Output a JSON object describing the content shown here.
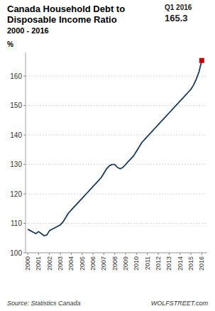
{
  "chart_data": {
    "type": "line",
    "title": [
      "Canada Household Debt to",
      "Disposable Income Ratio"
    ],
    "subtitle": "2000 - 2016",
    "y_label": "%",
    "annotations": [
      "Q1 2016",
      "165.3",
      "Source: Statistics Canada",
      "WOLFSTREET.com"
    ],
    "x": [
      2000.0,
      2000.25,
      2000.5,
      2000.75,
      2001.0,
      2001.25,
      2001.5,
      2001.75,
      2002.0,
      2002.25,
      2002.5,
      2002.75,
      2003.0,
      2003.25,
      2003.5,
      2003.75,
      2004.0,
      2004.25,
      2004.5,
      2004.75,
      2005.0,
      2005.25,
      2005.5,
      2005.75,
      2006.0,
      2006.25,
      2006.5,
      2006.75,
      2007.0,
      2007.25,
      2007.5,
      2007.75,
      2008.0,
      2008.25,
      2008.5,
      2008.75,
      2009.0,
      2009.25,
      2009.5,
      2009.75,
      2010.0,
      2010.25,
      2010.5,
      2010.75,
      2011.0,
      2011.25,
      2011.5,
      2011.75,
      2012.0,
      2012.25,
      2012.5,
      2012.75,
      2013.0,
      2013.25,
      2013.5,
      2013.75,
      2014.0,
      2014.25,
      2014.5,
      2014.75,
      2015.0,
      2015.25,
      2015.5,
      2015.75,
      2016.0
    ],
    "series": [
      {
        "color": "#1a3a5c",
        "values": [
          108.0,
          107.5,
          107.0,
          106.5,
          107.2,
          106.5,
          105.8,
          106.0,
          107.5,
          108.0,
          108.5,
          109.0,
          109.5,
          110.5,
          112.0,
          113.5,
          114.5,
          115.5,
          116.5,
          117.5,
          118.5,
          119.5,
          120.5,
          121.5,
          122.5,
          123.5,
          124.5,
          125.5,
          127.0,
          128.5,
          129.5,
          130.0,
          130.0,
          129.0,
          128.5,
          129.0,
          130.0,
          131.0,
          132.0,
          133.0,
          134.5,
          136.0,
          137.5,
          138.5,
          139.5,
          140.5,
          141.5,
          142.5,
          143.5,
          144.5,
          145.5,
          146.5,
          147.5,
          148.5,
          149.5,
          150.5,
          151.5,
          152.5,
          153.5,
          154.5,
          155.5,
          157.0,
          159.0,
          161.5,
          165.3
        ]
      },
      {
        "type": "scatter",
        "marker": "square",
        "color": "#cc0000",
        "values": [
          null,
          null,
          null,
          null,
          null,
          null,
          null,
          null,
          null,
          null,
          null,
          null,
          null,
          null,
          null,
          null,
          null,
          null,
          null,
          null,
          null,
          null,
          null,
          null,
          null,
          null,
          null,
          null,
          null,
          null,
          null,
          null,
          null,
          null,
          null,
          null,
          null,
          null,
          null,
          null,
          null,
          null,
          null,
          null,
          null,
          null,
          null,
          null,
          null,
          null,
          null,
          null,
          null,
          null,
          null,
          null,
          null,
          null,
          null,
          null,
          null,
          null,
          null,
          null,
          165.3
        ]
      }
    ],
    "xlim": [
      1999.8,
      2016.5
    ],
    "xticks": [
      2000,
      2001,
      2002,
      2003,
      2004,
      2005,
      2006,
      2007,
      2008,
      2009,
      2010,
      2011,
      2012,
      2013,
      2014,
      2015,
      2016
    ],
    "ylim": [
      100,
      168
    ],
    "yticks": [
      100,
      110,
      120,
      130,
      140,
      150,
      160
    ],
    "grid": true
  }
}
